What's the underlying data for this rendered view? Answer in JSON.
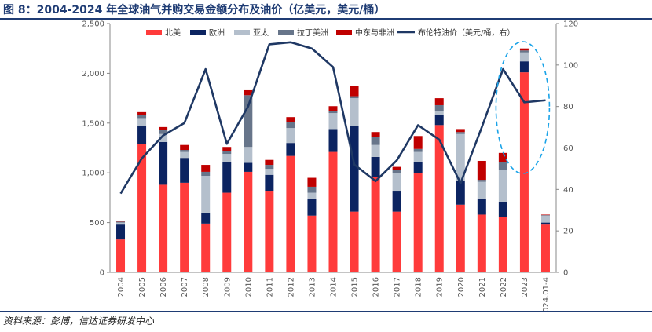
{
  "title": "图 8：2004-2024 年全球油气并购交易金额分布及油价（亿美元，美元/桶）",
  "source": "资料来源：彭博，信达证券研发中心",
  "chart_data": {
    "type": "bar",
    "stacked": true,
    "categories": [
      "2004",
      "2005",
      "2006",
      "2007",
      "2008",
      "2009",
      "2010",
      "2011",
      "2012",
      "2013",
      "2014",
      "2015",
      "2016",
      "2017",
      "2018",
      "2019",
      "2020",
      "2021",
      "2022",
      "2023",
      "2024.01-4"
    ],
    "series": [
      {
        "name": "北美",
        "color": "#ff3b3b",
        "values": [
          330,
          1290,
          880,
          900,
          490,
          800,
          1010,
          820,
          1170,
          570,
          1210,
          610,
          960,
          610,
          1000,
          1480,
          680,
          580,
          560,
          2010,
          480
        ]
      },
      {
        "name": "欧洲",
        "color": "#0c2461",
        "values": [
          150,
          180,
          430,
          250,
          110,
          310,
          90,
          160,
          130,
          170,
          230,
          860,
          200,
          210,
          110,
          100,
          240,
          160,
          150,
          110,
          20
        ]
      },
      {
        "name": "亚太",
        "color": "#b4bfcc",
        "values": [
          20,
          80,
          80,
          60,
          370,
          80,
          160,
          60,
          150,
          60,
          160,
          280,
          120,
          180,
          100,
          40,
          470,
          170,
          320,
          90,
          70
        ]
      },
      {
        "name": "拉丁美洲",
        "color": "#67758a",
        "values": [
          10,
          30,
          40,
          20,
          40,
          30,
          520,
          40,
          60,
          60,
          20,
          20,
          80,
          30,
          30,
          60,
          20,
          20,
          80,
          20,
          5
        ]
      },
      {
        "name": "中东与非洲",
        "color": "#c00000",
        "values": [
          10,
          30,
          30,
          50,
          70,
          40,
          50,
          50,
          50,
          90,
          50,
          100,
          50,
          30,
          130,
          70,
          30,
          190,
          90,
          20,
          5
        ]
      }
    ],
    "line_series": {
      "name": "布伦特油价（美元/桶，右）",
      "color": "#1f3864",
      "values": [
        38,
        55,
        66,
        72,
        98,
        62,
        80,
        110,
        111,
        108,
        99,
        52,
        44,
        54,
        71,
        64,
        43,
        70,
        98,
        82,
        83
      ]
    },
    "y_left": {
      "min": 0,
      "max": 2500,
      "ticks": [
        "0",
        "500",
        "1,000",
        "1,500",
        "2,000",
        "2,500"
      ]
    },
    "y_right": {
      "min": 0,
      "max": 120,
      "ticks": [
        "0",
        "20",
        "40",
        "60",
        "80",
        "100",
        "120"
      ]
    },
    "annotation": "dashed ellipse highlighting 2022-2023"
  }
}
